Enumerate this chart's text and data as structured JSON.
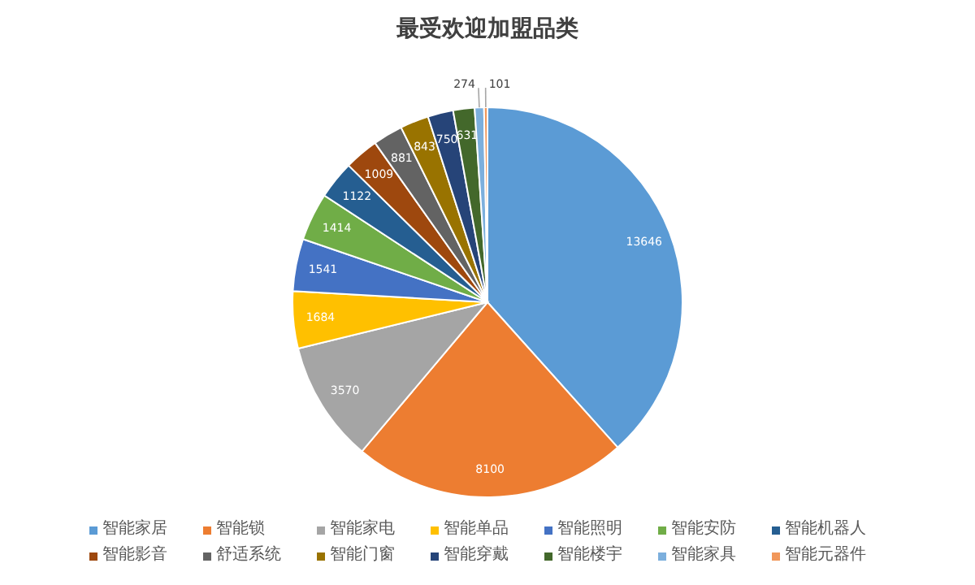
{
  "chart_data": {
    "type": "pie",
    "title": "最受欢迎加盟品类",
    "categories": [
      "智能家居",
      "智能锁",
      "智能家电",
      "智能单品",
      "智能照明",
      "智能安防",
      "智能机器人",
      "智能影音",
      "舒适系统",
      "智能门窗",
      "智能穿戴",
      "智能楼宇",
      "智能家具",
      "智能元器件"
    ],
    "values": [
      13646,
      8100,
      3570,
      1684,
      1541,
      1414,
      1122,
      1009,
      881,
      843,
      750,
      631,
      274,
      101
    ],
    "colors": [
      "#5b9bd5",
      "#ed7d31",
      "#a5a5a5",
      "#ffc000",
      "#4472c4",
      "#70ad47",
      "#255e91",
      "#9e480e",
      "#636363",
      "#997300",
      "#264478",
      "#43682b",
      "#7cafdd",
      "#f1975a"
    ],
    "data_labels": true,
    "legend": "bottom"
  }
}
